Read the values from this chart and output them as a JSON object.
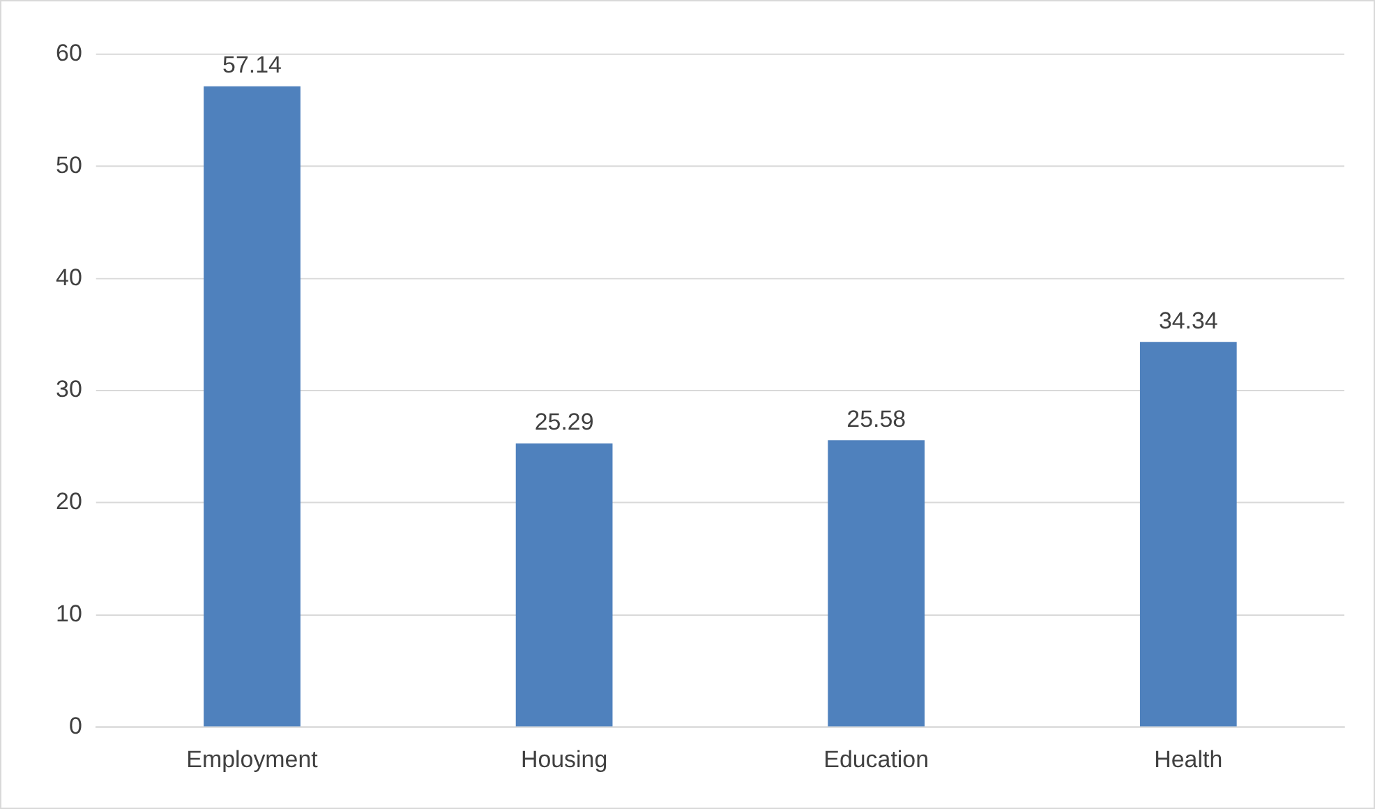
{
  "chart_data": {
    "type": "bar",
    "categories": [
      "Employment",
      "Housing",
      "Education",
      "Health"
    ],
    "values": [
      57.14,
      25.29,
      25.58,
      34.34
    ],
    "color": "#4f81bd",
    "ylim": [
      0,
      60
    ],
    "yticks": [
      0,
      10,
      20,
      30,
      40,
      50,
      60
    ],
    "grid": "y",
    "legend": false,
    "data_labels": true
  }
}
